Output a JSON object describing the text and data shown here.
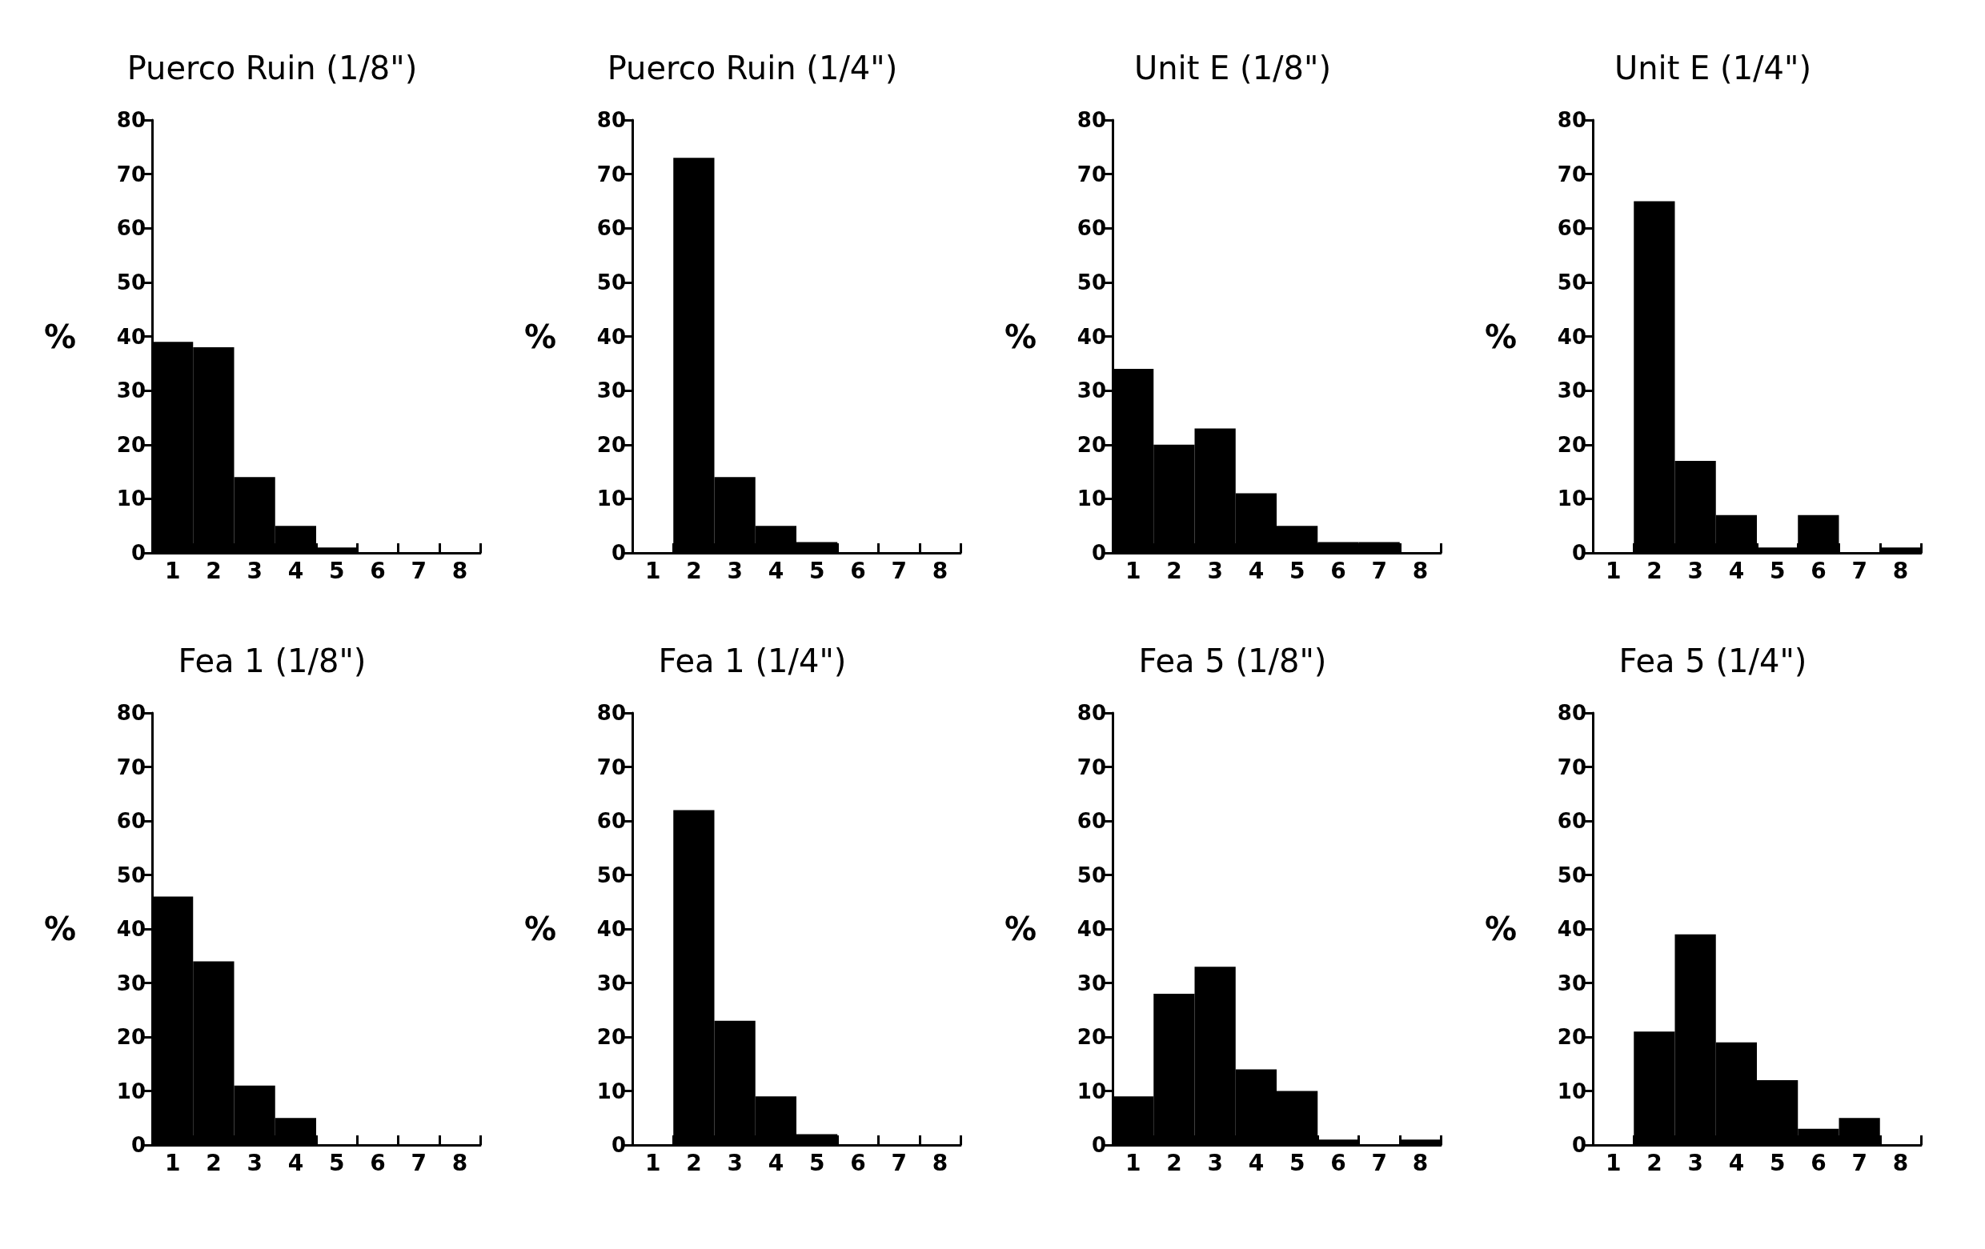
{
  "chart_data": [
    {
      "type": "bar",
      "title": "Puerco Ruin (1/8\")",
      "ylabel": "%",
      "categories": [
        "1",
        "2",
        "3",
        "4",
        "5",
        "6",
        "7",
        "8"
      ],
      "values": [
        39,
        38,
        14,
        5,
        1,
        0,
        0,
        0
      ],
      "color": "#000000",
      "ylim": [
        0,
        80
      ],
      "yticks": [
        0,
        10,
        20,
        30,
        40,
        50,
        60,
        70,
        80
      ],
      "grid": false
    },
    {
      "type": "bar",
      "title": "Puerco Ruin (1/4\")",
      "ylabel": "%",
      "categories": [
        "1",
        "2",
        "3",
        "4",
        "5",
        "6",
        "7",
        "8"
      ],
      "values": [
        0,
        73,
        14,
        5,
        2,
        0,
        0,
        0
      ],
      "color": "#000000",
      "ylim": [
        0,
        80
      ],
      "yticks": [
        0,
        10,
        20,
        30,
        40,
        50,
        60,
        70,
        80
      ],
      "grid": false
    },
    {
      "type": "bar",
      "title": "Unit E (1/8\")",
      "ylabel": "%",
      "categories": [
        "1",
        "2",
        "3",
        "4",
        "5",
        "6",
        "7",
        "8"
      ],
      "values": [
        34,
        20,
        23,
        11,
        5,
        2,
        2,
        0
      ],
      "color": "#000000",
      "ylim": [
        0,
        80
      ],
      "yticks": [
        0,
        10,
        20,
        30,
        40,
        50,
        60,
        70,
        80
      ],
      "grid": false
    },
    {
      "type": "bar",
      "title": "Unit E (1/4\")",
      "ylabel": "%",
      "categories": [
        "1",
        "2",
        "3",
        "4",
        "5",
        "6",
        "7",
        "8"
      ],
      "values": [
        0,
        65,
        17,
        7,
        1,
        7,
        0,
        1
      ],
      "color": "#000000",
      "ylim": [
        0,
        80
      ],
      "yticks": [
        0,
        10,
        20,
        30,
        40,
        50,
        60,
        70,
        80
      ],
      "grid": false
    },
    {
      "type": "bar",
      "title": "Fea 1 (1/8\")",
      "ylabel": "%",
      "categories": [
        "1",
        "2",
        "3",
        "4",
        "5",
        "6",
        "7",
        "8"
      ],
      "values": [
        46,
        34,
        11,
        5,
        0,
        0,
        0,
        0
      ],
      "color": "#000000",
      "ylim": [
        0,
        80
      ],
      "yticks": [
        0,
        10,
        20,
        30,
        40,
        50,
        60,
        70,
        80
      ],
      "grid": false
    },
    {
      "type": "bar",
      "title": "Fea 1 (1/4\")",
      "ylabel": "%",
      "categories": [
        "1",
        "2",
        "3",
        "4",
        "5",
        "6",
        "7",
        "8"
      ],
      "values": [
        0,
        62,
        23,
        9,
        2,
        0,
        0,
        0
      ],
      "color": "#000000",
      "ylim": [
        0,
        80
      ],
      "yticks": [
        0,
        10,
        20,
        30,
        40,
        50,
        60,
        70,
        80
      ],
      "grid": false
    },
    {
      "type": "bar",
      "title": "Fea 5 (1/8\")",
      "ylabel": "%",
      "categories": [
        "1",
        "2",
        "3",
        "4",
        "5",
        "6",
        "7",
        "8"
      ],
      "values": [
        9,
        28,
        33,
        14,
        10,
        1,
        0,
        1
      ],
      "color": "#000000",
      "ylim": [
        0,
        80
      ],
      "yticks": [
        0,
        10,
        20,
        30,
        40,
        50,
        60,
        70,
        80
      ],
      "grid": false
    },
    {
      "type": "bar",
      "title": "Fea 5 (1/4\")",
      "ylabel": "%",
      "categories": [
        "1",
        "2",
        "3",
        "4",
        "5",
        "6",
        "7",
        "8"
      ],
      "values": [
        0,
        21,
        39,
        19,
        12,
        3,
        5,
        0
      ],
      "color": "#000000",
      "ylim": [
        0,
        80
      ],
      "yticks": [
        0,
        10,
        20,
        30,
        40,
        50,
        60,
        70,
        80
      ],
      "grid": false
    }
  ]
}
